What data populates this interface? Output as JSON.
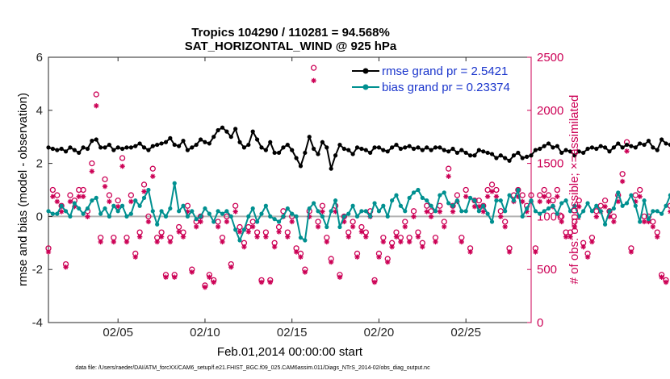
{
  "chart_data": {
    "type": "line",
    "title": [
      "Tropics 104290 / 110281 = 94.568%",
      "SAT_HORIZONTAL_WIND @ 925 hPa"
    ],
    "xlabel": "Feb.01,2014 00:00:00 start",
    "ylabel_left": "rmse and bias (model - observation)",
    "ylabel_right": "# of obs: o=possible; ×=assimilated",
    "footer": "data file: /Users/raeder/DAI/ATM_forcXX/CAM6_setup/f.e21.FHIST_BGC.f09_025.CAM6assim.011/Diags_NTrS_2014-02/obs_diag_output.nc",
    "xlim": [
      1,
      28.75
    ],
    "x_ticks": [
      5,
      10,
      15,
      20,
      25
    ],
    "x_tick_labels": [
      "02/05",
      "02/10",
      "02/15",
      "02/20",
      "02/25"
    ],
    "ylim_left": [
      -4,
      6
    ],
    "y_ticks_left": [
      "-4",
      "-2",
      "0",
      "2",
      "4",
      "6"
    ],
    "ylim_right": [
      0,
      2500
    ],
    "y_ticks_right": [
      "0",
      "500",
      "1000",
      "1500",
      "2000",
      "2500"
    ],
    "zero_line": 0,
    "x_start": 1.0,
    "x_step": 0.25,
    "series": [
      {
        "name": "rmse grand pr = 2.5421",
        "color": "#000000",
        "axis": "left",
        "values": [
          2.6,
          2.55,
          2.5,
          2.55,
          2.45,
          2.6,
          2.5,
          2.4,
          2.6,
          2.55,
          2.85,
          2.9,
          2.6,
          2.6,
          2.7,
          2.5,
          2.6,
          2.55,
          2.6,
          2.6,
          2.65,
          2.75,
          2.6,
          2.5,
          2.65,
          2.7,
          2.75,
          2.8,
          2.95,
          2.7,
          2.65,
          2.85,
          2.5,
          2.6,
          2.7,
          2.9,
          2.8,
          2.75,
          3.0,
          3.25,
          3.35,
          3.2,
          3.0,
          3.3,
          2.8,
          2.6,
          2.7,
          3.2,
          2.9,
          2.6,
          2.5,
          2.8,
          2.4,
          2.4,
          2.6,
          2.7,
          2.5,
          2.2,
          1.9,
          2.4,
          3.0,
          2.55,
          2.35,
          2.8,
          2.6,
          1.8,
          2.3,
          2.7,
          2.55,
          2.5,
          2.35,
          2.6,
          2.55,
          2.5,
          2.4,
          2.6,
          2.6,
          2.5,
          2.45,
          2.6,
          2.7,
          2.55,
          2.6,
          2.65,
          2.55,
          2.6,
          2.5,
          2.6,
          2.5,
          2.6,
          2.6,
          2.5,
          2.45,
          2.55,
          2.4,
          2.5,
          2.4,
          2.3,
          2.3,
          2.5,
          2.45,
          2.4,
          2.35,
          2.2,
          2.3,
          2.2,
          2.1,
          2.3,
          2.4,
          2.2,
          2.25,
          2.3,
          2.5,
          2.55,
          2.65,
          2.75,
          2.6,
          2.65,
          2.4,
          2.5,
          2.45,
          2.3,
          2.45,
          2.4,
          2.55,
          2.6,
          2.55,
          2.65,
          2.6,
          2.45,
          2.6,
          2.75,
          2.6,
          2.7,
          2.65,
          2.6,
          2.75,
          2.7,
          2.85,
          2.6,
          2.5,
          2.9,
          2.75,
          2.7
        ]
      },
      {
        "name": "bias grand pr = 0.23374",
        "color": "#009090",
        "axis": "left",
        "values": [
          0.2,
          0.1,
          0.1,
          0.4,
          0.2,
          0.0,
          0.5,
          0.3,
          0.1,
          0.3,
          0.6,
          0.7,
          0.1,
          0.3,
          0.0,
          0.4,
          0.2,
          0.4,
          0.0,
          0.1,
          0.6,
          0.4,
          0.7,
          1.0,
          0.2,
          -0.3,
          0.2,
          0.0,
          0.3,
          1.25,
          0.2,
          0.4,
          0.0,
          0.2,
          -0.1,
          0.0,
          0.3,
          0.1,
          -0.2,
          0.2,
          0.1,
          0.2,
          0.0,
          -0.5,
          -0.9,
          -0.5,
          0.0,
          0.3,
          -0.2,
          0.1,
          0.4,
          0.0,
          -0.1,
          -0.2,
          0.0,
          0.3,
          0.1,
          0.0,
          -0.8,
          -0.9,
          0.3,
          0.5,
          0.2,
          0.0,
          -0.4,
          0.2,
          0.6,
          -0.4,
          0.0,
          0.1,
          0.4,
          0.0,
          0.2,
          0.2,
          0.0,
          0.5,
          0.2,
          0.4,
          0.0,
          0.6,
          0.8,
          0.4,
          0.2,
          0.7,
          0.9,
          1.0,
          0.7,
          0.6,
          0.4,
          0.2,
          0.8,
          0.9,
          0.5,
          0.4,
          0.6,
          0.2,
          0.2,
          0.7,
          0.6,
          0.2,
          0.4,
          0.1,
          -0.2,
          0.6,
          0.6,
          0.2,
          0.8,
          0.6,
          1.0,
          0.0,
          0.3,
          0.6,
          0.2,
          0.1,
          0.2,
          0.3,
          0.4,
          0.1,
          0.5,
          0.6,
          0.2,
          0.4,
          0.0,
          0.2,
          0.5,
          0.2,
          0.4,
          0.2,
          -0.3,
          0.2,
          0.3,
          0.9,
          0.4,
          0.5,
          0.8,
          0.4,
          -0.2,
          0.6,
          -0.1,
          0.2,
          0.2,
          0.1,
          0.4,
          0.8
        ]
      }
    ],
    "obs": {
      "color": "#cc0055",
      "axis": "right",
      "possible_values": [
        700,
        1250,
        1200,
        1100,
        550,
        1200,
        1150,
        1250,
        1250,
        1050,
        1500,
        2150,
        800,
        1350,
        1200,
        800,
        1150,
        1550,
        800,
        1200,
        650,
        850,
        1300,
        1000,
        1450,
        800,
        850,
        450,
        800,
        450,
        900,
        850,
        1100,
        500,
        950,
        1000,
        350,
        450,
        400,
        950,
        800,
        1000,
        550,
        1100,
        900,
        750,
        900,
        950,
        850,
        400,
        850,
        400,
        750,
        900,
        1050,
        850,
        1000,
        700,
        650,
        500,
        1050,
        2400,
        950,
        1100,
        800,
        600,
        1100,
        450,
        1000,
        850,
        950,
        650,
        900,
        850,
        1050,
        400,
        650,
        800,
        600,
        750,
        850,
        800,
        950,
        800,
        1050,
        850,
        750,
        1100,
        1050,
        800,
        1100,
        950,
        1450,
        1100,
        1200,
        800,
        1250,
        700,
        1150,
        1150,
        1100,
        1250,
        1300,
        1250,
        1050,
        950,
        700,
        1200,
        1250,
        1200,
        1100,
        1200,
        700,
        1200,
        1250,
        1200,
        1150,
        1250,
        1000,
        850,
        850,
        950,
        1150,
        750,
        650,
        800,
        1050,
        1100,
        1150,
        1050,
        1000,
        1200,
        1400,
        1700,
        700,
        1200,
        1250,
        1000,
        1000,
        950,
        850,
        450,
        400,
        1100,
        850,
        550,
        500
      ]
    },
    "legend": {
      "location": "top-right",
      "rmse_label": "rmse grand pr = 2.5421",
      "bias_label": "bias grand pr = 0.23374",
      "label_color": "#1a35cc"
    },
    "grid": false
  }
}
